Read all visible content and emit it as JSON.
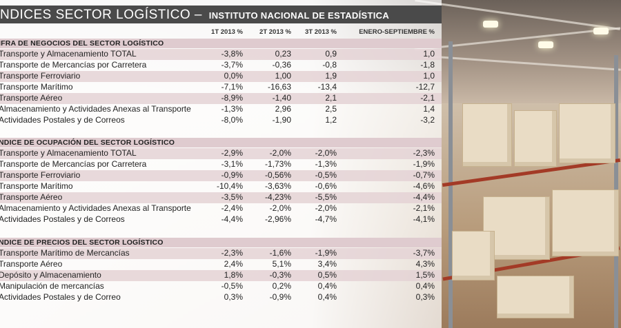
{
  "header": {
    "title": "NDICES SECTOR LOGÍSTICO",
    "separator": "–",
    "subtitle": "INSTITUTO NACIONAL DE ESTADÍSTICA"
  },
  "columns": [
    "1T 2013 %",
    "2T 2013 %",
    "3T 2013 %",
    "ENERO-SEPTIEMBRE %"
  ],
  "sections": [
    {
      "title": "IFRA DE NEGOCIOS DEL SECTOR LOGÍSTICO",
      "rows": [
        {
          "label": "Transporte y Almacenamiento TOTAL",
          "values": [
            "-3,8%",
            "0,23",
            "0,9",
            "1,0"
          ]
        },
        {
          "label": "Transporte de Mercancías por Carretera",
          "values": [
            "-3,7%",
            "-0,36",
            "-0,8",
            "-1,8"
          ]
        },
        {
          "label": "Transporte Ferroviario",
          "values": [
            "0,0%",
            "1,00",
            "1,9",
            "1,0"
          ]
        },
        {
          "label": "Transporte Marítimo",
          "values": [
            "-7,1%",
            "-16,63",
            "-13,4",
            "-12,7"
          ]
        },
        {
          "label": "Transporte Aéreo",
          "values": [
            "-8,9%",
            "-1,40",
            "2,1",
            "-2,1"
          ]
        },
        {
          "label": "Almacenamiento y Actividades Anexas al Transporte",
          "values": [
            "-1,3%",
            "2,96",
            "2,5",
            "1,4"
          ]
        },
        {
          "label": "Actividades Postales y de Correos",
          "values": [
            "-8,0%",
            "-1,90",
            "1,2",
            "-3,2"
          ]
        }
      ]
    },
    {
      "title": "NDICE DE OCUPACIÓN DEL SECTOR LOGÍSTICO",
      "rows": [
        {
          "label": "Transporte y Almacenamiento TOTAL",
          "values": [
            "-2,9%",
            "-2,0%",
            "-2,0%",
            "-2,3%"
          ]
        },
        {
          "label": "Transporte de Mercancías por Carretera",
          "values": [
            "-3,1%",
            "-1,73%",
            "-1,3%",
            "-1,9%"
          ]
        },
        {
          "label": "Transporte Ferroviario",
          "values": [
            "-0,9%",
            "-0,56%",
            "-0,5%",
            "-0,7%"
          ]
        },
        {
          "label": "Transporte Marítimo",
          "values": [
            "-10,4%",
            "-3,63%",
            "-0,6%",
            "-4,6%"
          ]
        },
        {
          "label": "Transporte Aéreo",
          "values": [
            "-3,5%",
            "-4,23%",
            "-5,5%",
            "-4,4%"
          ]
        },
        {
          "label": "Almacenamiento y Actividades Anexas al Transporte",
          "values": [
            "-2,4%",
            "-2,0%",
            "-2,0%",
            "-2,1%"
          ]
        },
        {
          "label": "Actividades Postales y de Correos",
          "values": [
            "-4,4%",
            "-2,96%",
            "-4,7%",
            "-4,1%"
          ]
        }
      ]
    },
    {
      "title": "NDICE DE PRECIOS DEL SECTOR LOGÍSTICO",
      "rows": [
        {
          "label": "Transporte Marítimo de Mercancías",
          "values": [
            "-2,3%",
            "-1,6%",
            "-1,9%",
            "-3,7%"
          ]
        },
        {
          "label": "Transporte Aéreo",
          "values": [
            "2,4%",
            "5,1%",
            "3,4%",
            "4,3%"
          ]
        },
        {
          "label": "Depósito y Almacenamiento",
          "values": [
            "1,8%",
            "-0,3%",
            "0,5%",
            "1,5%"
          ]
        },
        {
          "label": "Manipulación de mercancías",
          "values": [
            "-0,5%",
            "0,2%",
            "0,4%",
            "0,4%"
          ]
        },
        {
          "label": "Actividades Postales y de Correo",
          "values": [
            "0,3%",
            "-0,9%",
            "0,4%",
            "0,3%"
          ]
        }
      ]
    }
  ]
}
